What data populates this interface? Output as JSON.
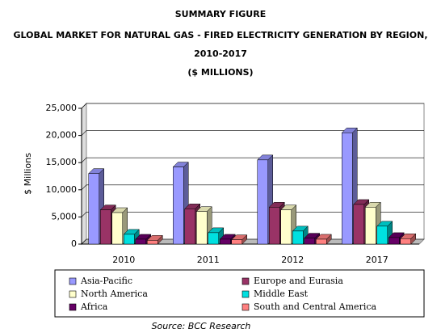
{
  "chart_data": {
    "type": "bar",
    "title": "SUMMARY FIGURE",
    "subtitle": [
      "GLOBAL MARKET FOR NATURAL GAS - FIRED ELECTRICITY GENERATION BY REGION,",
      "2010-2017",
      "($ MILLIONS)"
    ],
    "y_label": "$ Millions",
    "source": "Source: BCC Research",
    "categories": [
      "2010",
      "2011",
      "2012",
      "2017"
    ],
    "series": [
      {
        "name": "Asia-Pacific",
        "color": "#9999ff",
        "values": [
          13000,
          14200,
          15500,
          20500
        ]
      },
      {
        "name": "Europe and Eurasia",
        "color": "#993366",
        "values": [
          6300,
          6500,
          6800,
          7300
        ]
      },
      {
        "name": "North America",
        "color": "#ffffcc",
        "values": [
          5800,
          6000,
          6300,
          6800
        ]
      },
      {
        "name": "Middle East",
        "color": "#00e0e0",
        "values": [
          1800,
          2100,
          2400,
          3300
        ]
      },
      {
        "name": "Africa",
        "color": "#660066",
        "values": [
          900,
          900,
          1100,
          1200
        ]
      },
      {
        "name": "South and Central America",
        "color": "#ff8080",
        "values": [
          700,
          800,
          900,
          1000
        ]
      }
    ],
    "ylim": [
      0,
      25000
    ],
    "yticks": [
      0,
      {
        "value": 5000,
        "label": "5,000"
      },
      {
        "value": 10000,
        "label": "10,000"
      },
      {
        "value": 15000,
        "label": "15,000"
      },
      {
        "value": 20000,
        "label": "20,000"
      },
      {
        "value": 25000,
        "label": "25,000"
      }
    ],
    "grid": true
  }
}
